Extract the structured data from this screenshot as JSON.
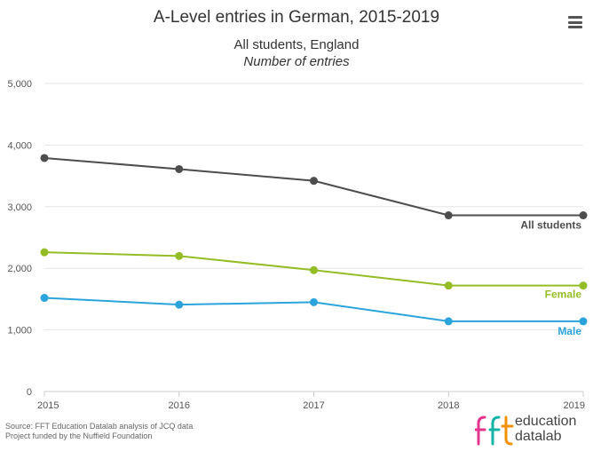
{
  "title": "A-Level entries in German, 2015-2019",
  "subtitle_line1": "All students, England",
  "subtitle_line2": "Number of entries",
  "footer": {
    "source": "Source: FFT Education Datalab analysis of JCQ data",
    "funding": "Project funded by the Nuffield Foundation"
  },
  "logo": {
    "mark": "fft",
    "line1": "education",
    "line2": "datalab"
  },
  "colors": {
    "all": "#4d4d4d",
    "female": "#94bd25",
    "male": "#2ba4db",
    "grid": "#e6e6e6",
    "mark_pink": "#e4348c",
    "mark_teal": "#16b4a6",
    "mark_orange": "#f29200"
  },
  "chart_data": {
    "type": "line",
    "x": [
      2015,
      2016,
      2017,
      2018,
      2019
    ],
    "ylim": [
      0,
      5000
    ],
    "yticks": [
      0,
      1000,
      2000,
      3000,
      4000,
      5000
    ],
    "ytick_labels": [
      "0",
      "1,000",
      "2,000",
      "3,000",
      "4,000",
      "5,000"
    ],
    "grid": true,
    "series": [
      {
        "name": "All students",
        "values": [
          3790,
          3610,
          3420,
          2860,
          2860
        ]
      },
      {
        "name": "Female",
        "values": [
          2260,
          2200,
          1970,
          1720,
          1720
        ]
      },
      {
        "name": "Male",
        "values": [
          1520,
          1410,
          1450,
          1140,
          1140
        ]
      }
    ]
  }
}
